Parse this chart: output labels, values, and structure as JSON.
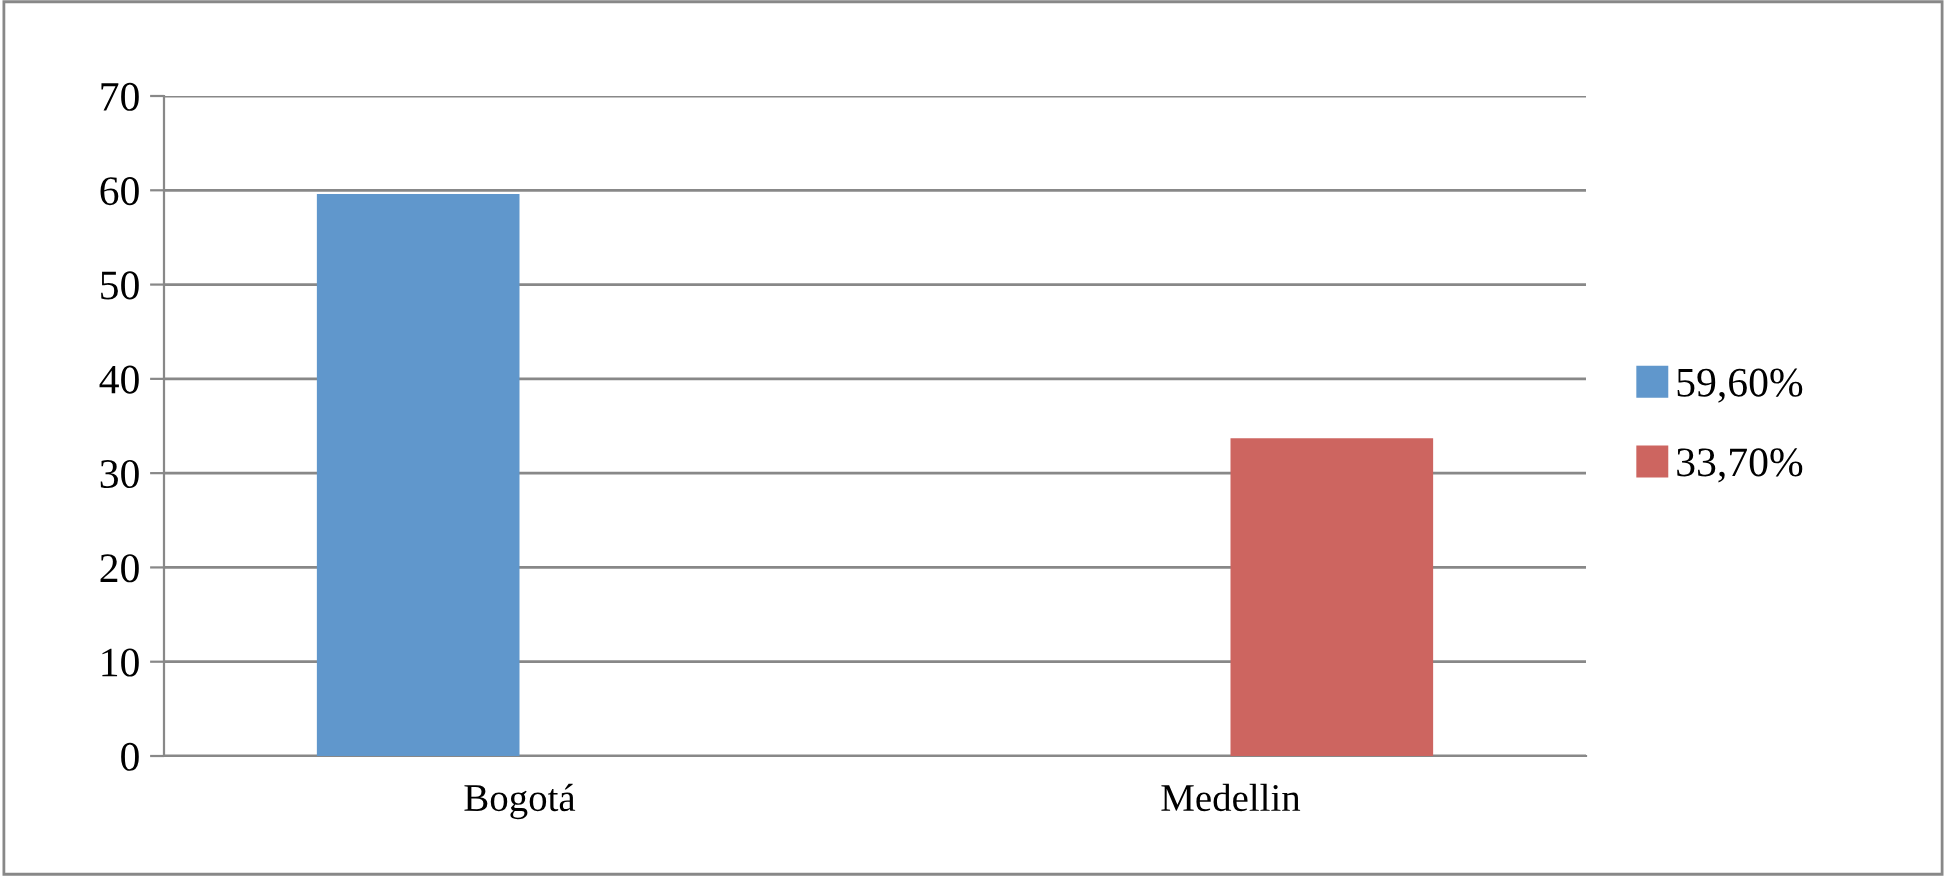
{
  "chart_data": {
    "type": "bar",
    "categories": [
      "Bogotá",
      "Medellin"
    ],
    "series": [
      {
        "name": "59,60%",
        "color": "#6097cc",
        "values": [
          59.6,
          null
        ]
      },
      {
        "name": "33,70%",
        "color": "#cd6560",
        "values": [
          null,
          33.7
        ]
      }
    ],
    "ylim": [
      0,
      70
    ],
    "yticks": [
      0,
      10,
      20,
      30,
      40,
      50,
      60,
      70
    ],
    "grid": "y",
    "legend": "right"
  }
}
